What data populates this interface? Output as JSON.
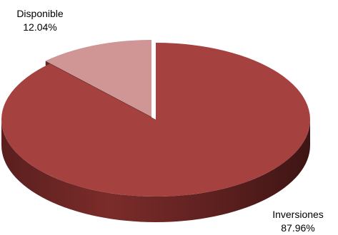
{
  "chart_data": {
    "type": "pie",
    "style": "3d-exploded",
    "title": "",
    "slices": [
      {
        "label": "Inversiones",
        "value": 87.96,
        "display": "87.96%",
        "color": "#A5413F"
      },
      {
        "label": "Disponible",
        "value": 12.04,
        "display": "12.04%",
        "color": "#D09595"
      }
    ],
    "legend": "none"
  }
}
